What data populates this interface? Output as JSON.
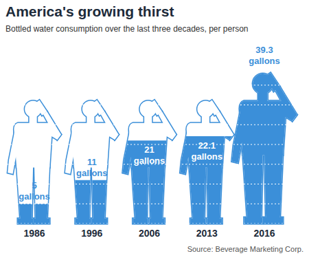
{
  "chart_data": {
    "type": "pictograph",
    "title": "America's growing thirst",
    "subtitle": "Bottled water consumption over the last three decades, per person",
    "source": "Source: Beverage Marketing Corp.",
    "categories": [
      "1986",
      "1996",
      "2006",
      "2013",
      "2016"
    ],
    "values": [
      5,
      11,
      21,
      22.1,
      39.3
    ],
    "value_labels": [
      "5 gallons",
      "11 gallons",
      "21 gallons",
      "22.1 gallons",
      "39.3 gallons"
    ],
    "color": "#3b8fd9",
    "ylim": [
      0,
      40
    ],
    "yticks": [
      0,
      5,
      10,
      15,
      20,
      25,
      30,
      35,
      40
    ],
    "grid": true,
    "data_labels": true,
    "tick_labels": "x"
  }
}
